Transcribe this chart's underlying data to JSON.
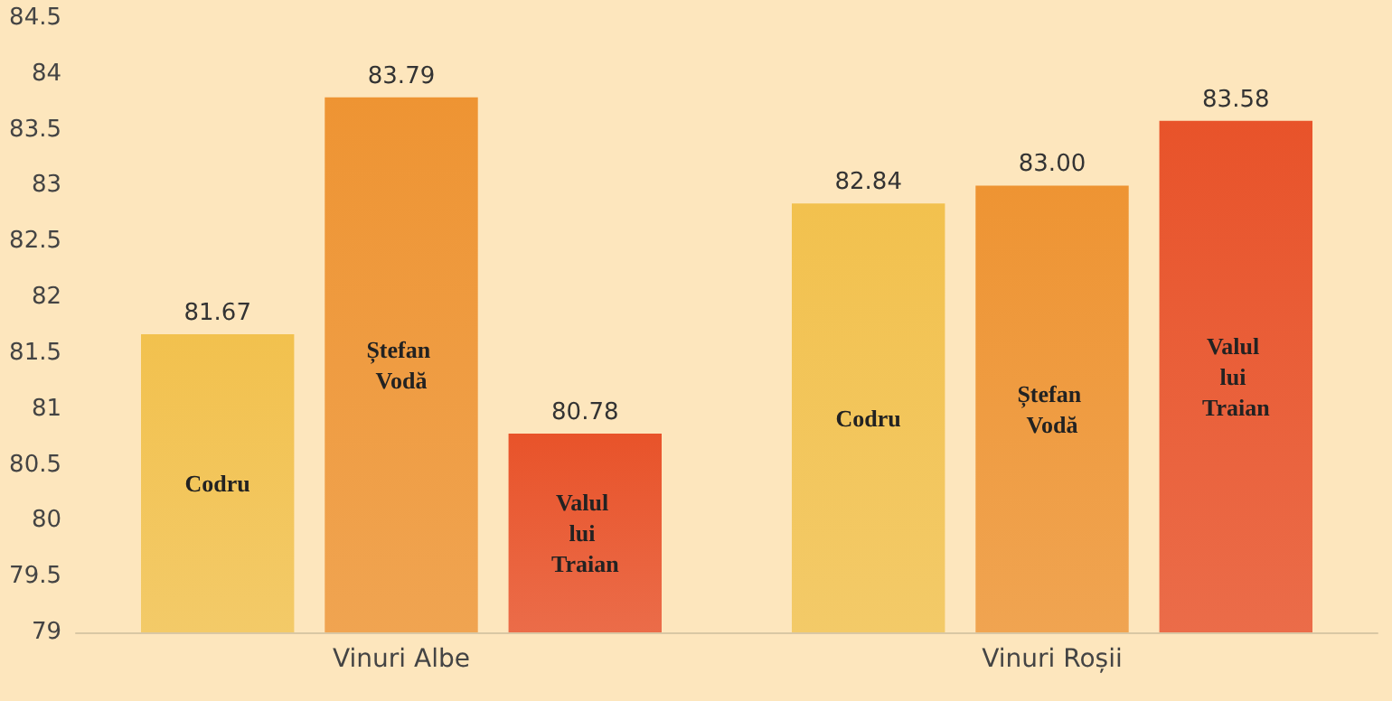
{
  "chart_data": {
    "type": "bar",
    "categories": [
      "Vinuri Albe",
      "Vinuri Roșii"
    ],
    "series": [
      {
        "name": "Codru",
        "color": "#f2c14e",
        "values": [
          81.67,
          82.84
        ]
      },
      {
        "name": "Ștefan Vodă",
        "color": "#ee9433",
        "values": [
          83.79,
          83.0
        ]
      },
      {
        "name": "Valul lui Traian",
        "color": "#e8532a",
        "values": [
          80.78,
          83.58
        ]
      }
    ],
    "ylim": [
      79,
      84.5
    ],
    "yticks": [
      79,
      79.5,
      80,
      80.5,
      81,
      81.5,
      82,
      82.5,
      83,
      83.5,
      84,
      84.5
    ],
    "value_labels": [
      [
        "81.67",
        "82.84"
      ],
      [
        "83.79",
        "83.00"
      ],
      [
        "80.78",
        "83.58"
      ]
    ],
    "grid": false,
    "legend": false
  }
}
